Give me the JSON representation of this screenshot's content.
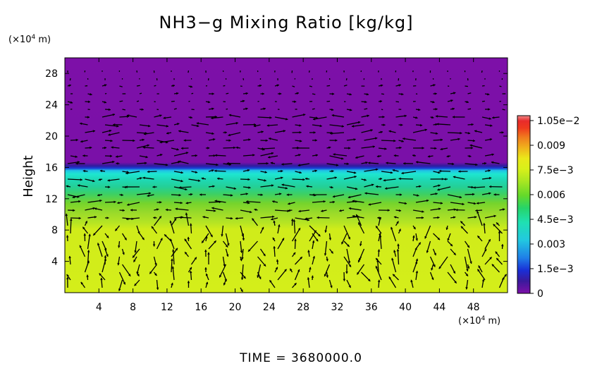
{
  "chart_data": {
    "type": "heatmap",
    "title": "NH3−g Mixing Ratio [kg/kg]",
    "ylabel": "Height",
    "y_unit_base": "(×10",
    "y_unit_exp": "4",
    "y_unit_tail": " m)",
    "x_unit_base": "(×10",
    "x_unit_exp": "4",
    "x_unit_tail": " m)",
    "time_label": "TIME  =  3680000.0",
    "xlim": [
      0,
      52
    ],
    "ylim": [
      0,
      30
    ],
    "x_ticks": [
      "4",
      "8",
      "12",
      "16",
      "20",
      "24",
      "28",
      "32",
      "36",
      "40",
      "44",
      "48"
    ],
    "x_tick_values": [
      4,
      8,
      12,
      16,
      20,
      24,
      28,
      32,
      36,
      40,
      44,
      48
    ],
    "y_ticks": [
      "4",
      "8",
      "12",
      "16",
      "20",
      "24",
      "28"
    ],
    "y_tick_values": [
      4,
      8,
      12,
      16,
      20,
      24,
      28
    ],
    "colorbar": {
      "range": [
        0,
        0.0108
      ],
      "labels": [
        "1.05e−2",
        "0.009",
        "7.5e−3",
        "0.006",
        "4.5e−3",
        "0.003",
        "1.5e−3",
        "0"
      ],
      "label_values": [
        0.0105,
        0.009,
        0.0075,
        0.006,
        0.0045,
        0.003,
        0.0015,
        0
      ],
      "colors": [
        "#7d10a8",
        "#3a1a9c",
        "#1a2fd6",
        "#1f7fe8",
        "#22c8e0",
        "#1fe0b2",
        "#26d46a",
        "#64d92a",
        "#a8e622",
        "#d8f01a",
        "#eae81a",
        "#f0b21c",
        "#f07a1e",
        "#ef3a1e",
        "#e82b2b",
        "#f08a8a"
      ]
    },
    "profile": {
      "description_free": true,
      "height": [
        0,
        2,
        4,
        6,
        8,
        9,
        10,
        11,
        12,
        13,
        14,
        15,
        15.8,
        16.2,
        17,
        30
      ],
      "value": [
        0.0079,
        0.0079,
        0.0079,
        0.0079,
        0.0078,
        0.0075,
        0.007,
        0.0066,
        0.0064,
        0.0058,
        0.0054,
        0.0049,
        0.0046,
        0.0012,
        0.0,
        0.0
      ]
    }
  }
}
